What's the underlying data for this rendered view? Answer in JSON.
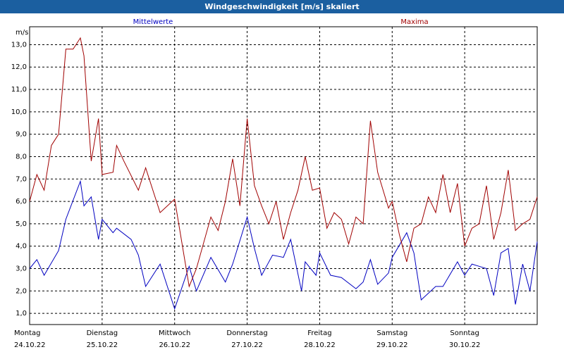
{
  "window": {
    "title": "Windgeschwindigkeit [m/s] skaliert"
  },
  "colors": {
    "title_bar": "#1b5fa0",
    "series_mean": "#0000c0",
    "series_max": "#a00000",
    "grid": "#000000"
  },
  "chart_data": {
    "type": "line",
    "title": "Windgeschwindigkeit [m/s] skaliert",
    "ylabel": "m/s",
    "ylim": [
      0.5,
      13.8
    ],
    "yticks": [
      1.0,
      2.0,
      3.0,
      4.0,
      5.0,
      6.0,
      7.0,
      8.0,
      9.0,
      10.0,
      11.0,
      12.0,
      13.0
    ],
    "ytick_labels": [
      "1,0",
      "2,0",
      "3,0",
      "4,0",
      "5,0",
      "6,0",
      "7,0",
      "8,0",
      "9,0",
      "10,0",
      "11,0",
      "12,0",
      "13,0"
    ],
    "x_unit": "day",
    "xlim": [
      0,
      7
    ],
    "days": [
      {
        "weekday": "Montag",
        "date": "24.10.22"
      },
      {
        "weekday": "Dienstag",
        "date": "25.10.22"
      },
      {
        "weekday": "Mittwoch",
        "date": "26.10.22"
      },
      {
        "weekday": "Donnerstag",
        "date": "27.10.22"
      },
      {
        "weekday": "Freitag",
        "date": "28.10.22"
      },
      {
        "weekday": "Samstag",
        "date": "29.10.22"
      },
      {
        "weekday": "Sonntag",
        "date": "30.10.22"
      }
    ],
    "grid": true,
    "series": [
      {
        "name": "Mittelwerte",
        "color": "#0000c0",
        "x": [
          0,
          0.1,
          0.2,
          0.4,
          0.5,
          0.7,
          0.75,
          0.85,
          0.95,
          1.0,
          1.15,
          1.2,
          1.4,
          1.5,
          1.6,
          1.8,
          2.0,
          2.2,
          2.3,
          2.5,
          2.7,
          2.8,
          3.0,
          3.1,
          3.2,
          3.35,
          3.5,
          3.6,
          3.75,
          3.8,
          3.95,
          4.0,
          4.15,
          4.3,
          4.5,
          4.6,
          4.7,
          4.8,
          4.95,
          5.0,
          5.2,
          5.3,
          5.4,
          5.6,
          5.7,
          5.9,
          6.0,
          6.1,
          6.2,
          6.3,
          6.4,
          6.5,
          6.6,
          6.7,
          6.8,
          6.9,
          7.0
        ],
        "values": [
          3.0,
          3.4,
          2.7,
          3.8,
          5.2,
          6.9,
          5.8,
          6.2,
          4.3,
          5.2,
          4.6,
          4.8,
          4.3,
          3.6,
          2.2,
          3.2,
          1.2,
          3.1,
          2.0,
          3.5,
          2.4,
          3.2,
          5.3,
          3.9,
          2.7,
          3.6,
          3.5,
          4.3,
          2.0,
          3.3,
          2.7,
          3.7,
          2.7,
          2.6,
          2.1,
          2.4,
          3.4,
          2.3,
          2.8,
          3.5,
          4.6,
          3.7,
          1.6,
          2.2,
          2.2,
          3.3,
          2.7,
          3.2,
          3.1,
          3.0,
          1.8,
          3.7,
          3.9,
          1.4,
          3.2,
          2.0,
          4.2
        ]
      },
      {
        "name": "Maxima",
        "color": "#a00000",
        "x": [
          0,
          0.1,
          0.2,
          0.3,
          0.4,
          0.5,
          0.6,
          0.7,
          0.75,
          0.85,
          0.95,
          1.0,
          1.15,
          1.2,
          1.3,
          1.5,
          1.6,
          1.8,
          2.0,
          2.2,
          2.3,
          2.5,
          2.6,
          2.7,
          2.8,
          2.9,
          3.0,
          3.1,
          3.2,
          3.3,
          3.4,
          3.5,
          3.6,
          3.7,
          3.8,
          3.9,
          4.0,
          4.1,
          4.2,
          4.3,
          4.4,
          4.5,
          4.6,
          4.7,
          4.8,
          4.95,
          5.0,
          5.1,
          5.2,
          5.3,
          5.4,
          5.5,
          5.6,
          5.7,
          5.8,
          5.9,
          6.0,
          6.1,
          6.2,
          6.3,
          6.4,
          6.5,
          6.6,
          6.7,
          6.8,
          6.9,
          7.0
        ],
        "values": [
          6.0,
          7.2,
          6.5,
          8.5,
          9.0,
          12.8,
          12.8,
          13.3,
          12.5,
          7.8,
          9.7,
          7.2,
          7.3,
          8.5,
          7.8,
          6.5,
          7.5,
          5.5,
          6.1,
          2.2,
          3.0,
          5.3,
          4.7,
          6.0,
          7.9,
          5.8,
          9.7,
          6.7,
          5.8,
          5.0,
          6.0,
          4.3,
          5.5,
          6.5,
          8.0,
          6.5,
          6.6,
          4.8,
          5.5,
          5.2,
          4.1,
          5.3,
          5.0,
          9.6,
          7.3,
          5.7,
          6.0,
          4.5,
          3.3,
          4.8,
          5.0,
          6.2,
          5.5,
          7.2,
          5.5,
          6.8,
          4.0,
          4.8,
          5.0,
          6.7,
          4.3,
          5.5,
          7.4,
          4.7,
          5.0,
          5.2,
          6.2
        ]
      }
    ]
  }
}
